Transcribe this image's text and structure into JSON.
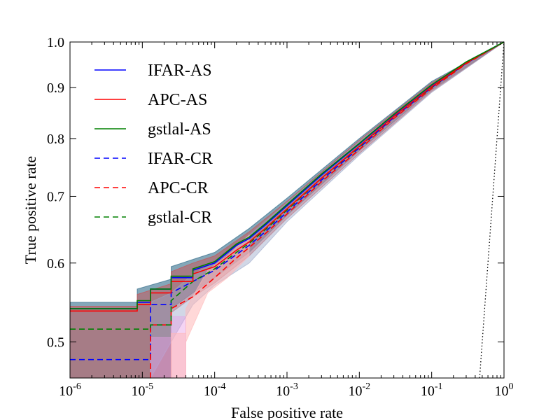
{
  "chart_data": {
    "type": "line",
    "title": "",
    "xlabel": "False positive rate",
    "ylabel": "True positive rate",
    "xscale": "log",
    "yscale": "log",
    "xlim": [
      1e-06,
      1.0
    ],
    "ylim": [
      0.46,
      1.0
    ],
    "x_ticks": [
      {
        "value": 1e-06,
        "base": "10",
        "exp": "-6"
      },
      {
        "value": 1e-05,
        "base": "10",
        "exp": "-5"
      },
      {
        "value": 0.0001,
        "base": "10",
        "exp": "-4"
      },
      {
        "value": 0.001,
        "base": "10",
        "exp": "-3"
      },
      {
        "value": 0.01,
        "base": "10",
        "exp": "-2"
      },
      {
        "value": 0.1,
        "base": "10",
        "exp": "-1"
      },
      {
        "value": 1.0,
        "base": "10",
        "exp": "0"
      }
    ],
    "y_ticks": [
      {
        "value": 0.5,
        "label": "0.5"
      },
      {
        "value": 0.6,
        "label": "0.6"
      },
      {
        "value": 0.7,
        "label": "0.7"
      },
      {
        "value": 0.8,
        "label": "0.8"
      },
      {
        "value": 0.9,
        "label": "0.9"
      },
      {
        "value": 1.0,
        "label": "1.0"
      }
    ],
    "legend_position": "top-left",
    "reference_line": {
      "name": "chance-diagonal",
      "style": "dotted",
      "color": "#000000",
      "x": [
        0.46,
        1.0
      ],
      "y": [
        0.46,
        1.0
      ]
    },
    "series": [
      {
        "name": "IFAR-AS",
        "color": "#0000ff",
        "dash": "solid",
        "x": [
          1e-06,
          8.5e-06,
          8.5e-06,
          1.3e-05,
          1.3e-05,
          2.5e-05,
          2.5e-05,
          5e-05,
          5e-05,
          0.0001,
          0.0002,
          0.0003,
          0.0005,
          0.001,
          0.003,
          0.01,
          0.03,
          0.1,
          0.3,
          1.0
        ],
        "y": [
          0.54,
          0.54,
          0.548,
          0.548,
          0.565,
          0.565,
          0.58,
          0.58,
          0.59,
          0.6,
          0.625,
          0.635,
          0.655,
          0.685,
          0.735,
          0.79,
          0.845,
          0.905,
          0.955,
          1.0
        ]
      },
      {
        "name": "APC-AS",
        "color": "#ff0000",
        "dash": "solid",
        "x": [
          1e-06,
          8.5e-06,
          8.5e-06,
          1.3e-05,
          1.3e-05,
          2.5e-05,
          2.5e-05,
          5e-05,
          5e-05,
          0.0001,
          0.0002,
          0.0003,
          0.0005,
          0.001,
          0.003,
          0.01,
          0.03,
          0.1,
          0.3,
          1.0
        ],
        "y": [
          0.537,
          0.537,
          0.545,
          0.545,
          0.56,
          0.56,
          0.575,
          0.575,
          0.585,
          0.595,
          0.618,
          0.63,
          0.65,
          0.68,
          0.73,
          0.786,
          0.842,
          0.902,
          0.953,
          1.0
        ]
      },
      {
        "name": "gstlal-AS",
        "color": "#008000",
        "dash": "solid",
        "x": [
          1e-06,
          8.5e-06,
          8.5e-06,
          1.3e-05,
          1.3e-05,
          2.5e-05,
          2.5e-05,
          5e-05,
          5e-05,
          0.0001,
          0.0002,
          0.0003,
          0.0005,
          0.001,
          0.003,
          0.01,
          0.03,
          0.1,
          0.3,
          1.0
        ],
        "y": [
          0.54,
          0.54,
          0.55,
          0.55,
          0.565,
          0.565,
          0.582,
          0.582,
          0.592,
          0.602,
          0.627,
          0.637,
          0.657,
          0.687,
          0.737,
          0.791,
          0.846,
          0.906,
          0.955,
          1.0
        ]
      },
      {
        "name": "IFAR-CR",
        "color": "#0000ff",
        "dash": "dashed",
        "x": [
          1e-06,
          1.3e-05,
          1.3e-05,
          2.5e-05,
          2.5e-05,
          5e-05,
          0.0001,
          0.0002,
          0.0003,
          0.0005,
          0.001,
          0.003,
          0.01,
          0.03,
          0.1,
          0.3,
          1.0
        ],
        "y": [
          0.48,
          0.48,
          0.545,
          0.545,
          0.56,
          0.575,
          0.59,
          0.612,
          0.625,
          0.645,
          0.675,
          0.727,
          0.783,
          0.84,
          0.9,
          0.952,
          1.0
        ]
      },
      {
        "name": "APC-CR",
        "color": "#ff0000",
        "dash": "dashed",
        "x": [
          1.3e-05,
          1.3e-05,
          2.5e-05,
          2.5e-05,
          5e-05,
          0.0001,
          0.0002,
          0.0003,
          0.0005,
          0.001,
          0.003,
          0.01,
          0.03,
          0.1,
          0.3,
          1.0
        ],
        "y": [
          0.46,
          0.52,
          0.52,
          0.54,
          0.555,
          0.58,
          0.607,
          0.622,
          0.642,
          0.672,
          0.724,
          0.78,
          0.838,
          0.898,
          0.951,
          1.0
        ]
      },
      {
        "name": "gstlal-CR",
        "color": "#008000",
        "dash": "dashed",
        "x": [
          1e-06,
          1.3e-05,
          1.3e-05,
          2.5e-05,
          2.5e-05,
          5e-05,
          0.0001,
          0.0002,
          0.0003,
          0.0005,
          0.001,
          0.003,
          0.01,
          0.03,
          0.1,
          0.3,
          1.0
        ],
        "y": [
          0.515,
          0.515,
          0.52,
          0.52,
          0.55,
          0.575,
          0.592,
          0.615,
          0.628,
          0.648,
          0.678,
          0.73,
          0.785,
          0.842,
          0.901,
          0.953,
          1.0
        ]
      }
    ],
    "bands": [
      {
        "name": "IFAR-AS band",
        "color": "#1f5f7f",
        "opacity": 0.55,
        "x": [
          1e-06,
          8.5e-06,
          8.5e-06,
          2.5e-05,
          2.5e-05,
          5e-05,
          0.0001,
          0.0003,
          0.001,
          0.01,
          0.1,
          1.0
        ],
        "lower": [
          0.46,
          0.46,
          0.46,
          0.46,
          0.54,
          0.56,
          0.58,
          0.615,
          0.67,
          0.778,
          0.895,
          1.0
        ],
        "upper": [
          0.548,
          0.548,
          0.565,
          0.578,
          0.595,
          0.605,
          0.615,
          0.65,
          0.697,
          0.8,
          0.913,
          1.0
        ]
      },
      {
        "name": "APC-AS band",
        "color": "#d04a4a",
        "opacity": 0.45,
        "x": [
          1e-06,
          8.5e-06,
          8.5e-06,
          2.5e-05,
          2.5e-05,
          5e-05,
          0.0001,
          0.0003,
          0.001,
          0.01,
          0.1,
          1.0
        ],
        "lower": [
          0.46,
          0.46,
          0.46,
          0.46,
          0.535,
          0.555,
          0.573,
          0.61,
          0.665,
          0.773,
          0.892,
          1.0
        ],
        "upper": [
          0.543,
          0.543,
          0.558,
          0.572,
          0.588,
          0.6,
          0.61,
          0.645,
          0.692,
          0.797,
          0.91,
          1.0
        ]
      },
      {
        "name": "IFAR-CR band",
        "color": "#9aa6c8",
        "opacity": 0.45,
        "x": [
          1.3e-05,
          1.3e-05,
          2.5e-05,
          5e-05,
          0.0001,
          0.0003,
          0.001,
          0.01,
          0.1,
          1.0
        ],
        "lower": [
          0.46,
          0.46,
          0.5,
          0.545,
          0.57,
          0.6,
          0.66,
          0.77,
          0.89,
          1.0
        ],
        "upper": [
          0.46,
          0.548,
          0.56,
          0.585,
          0.6,
          0.64,
          0.69,
          0.795,
          0.908,
          1.0
        ]
      },
      {
        "name": "APC-CR band",
        "color": "#e6a0e6",
        "opacity": 0.45,
        "x": [
          1.3e-05,
          1.3e-05,
          2.5e-05,
          2.5e-05,
          4e-05
        ],
        "lower": [
          0.46,
          0.46,
          0.46,
          0.46,
          0.46
        ],
        "upper": [
          0.46,
          0.505,
          0.505,
          0.53,
          0.53
        ]
      },
      {
        "name": "light band",
        "color": "#ffb8b8",
        "opacity": 0.55,
        "x": [
          2.5e-05,
          4e-05,
          4e-05,
          8e-05,
          0.00015,
          0.0003
        ],
        "lower": [
          0.46,
          0.46,
          0.5,
          0.56,
          0.58,
          0.61
        ],
        "upper": [
          0.51,
          0.51,
          0.54,
          0.59,
          0.61,
          0.64
        ]
      }
    ]
  }
}
